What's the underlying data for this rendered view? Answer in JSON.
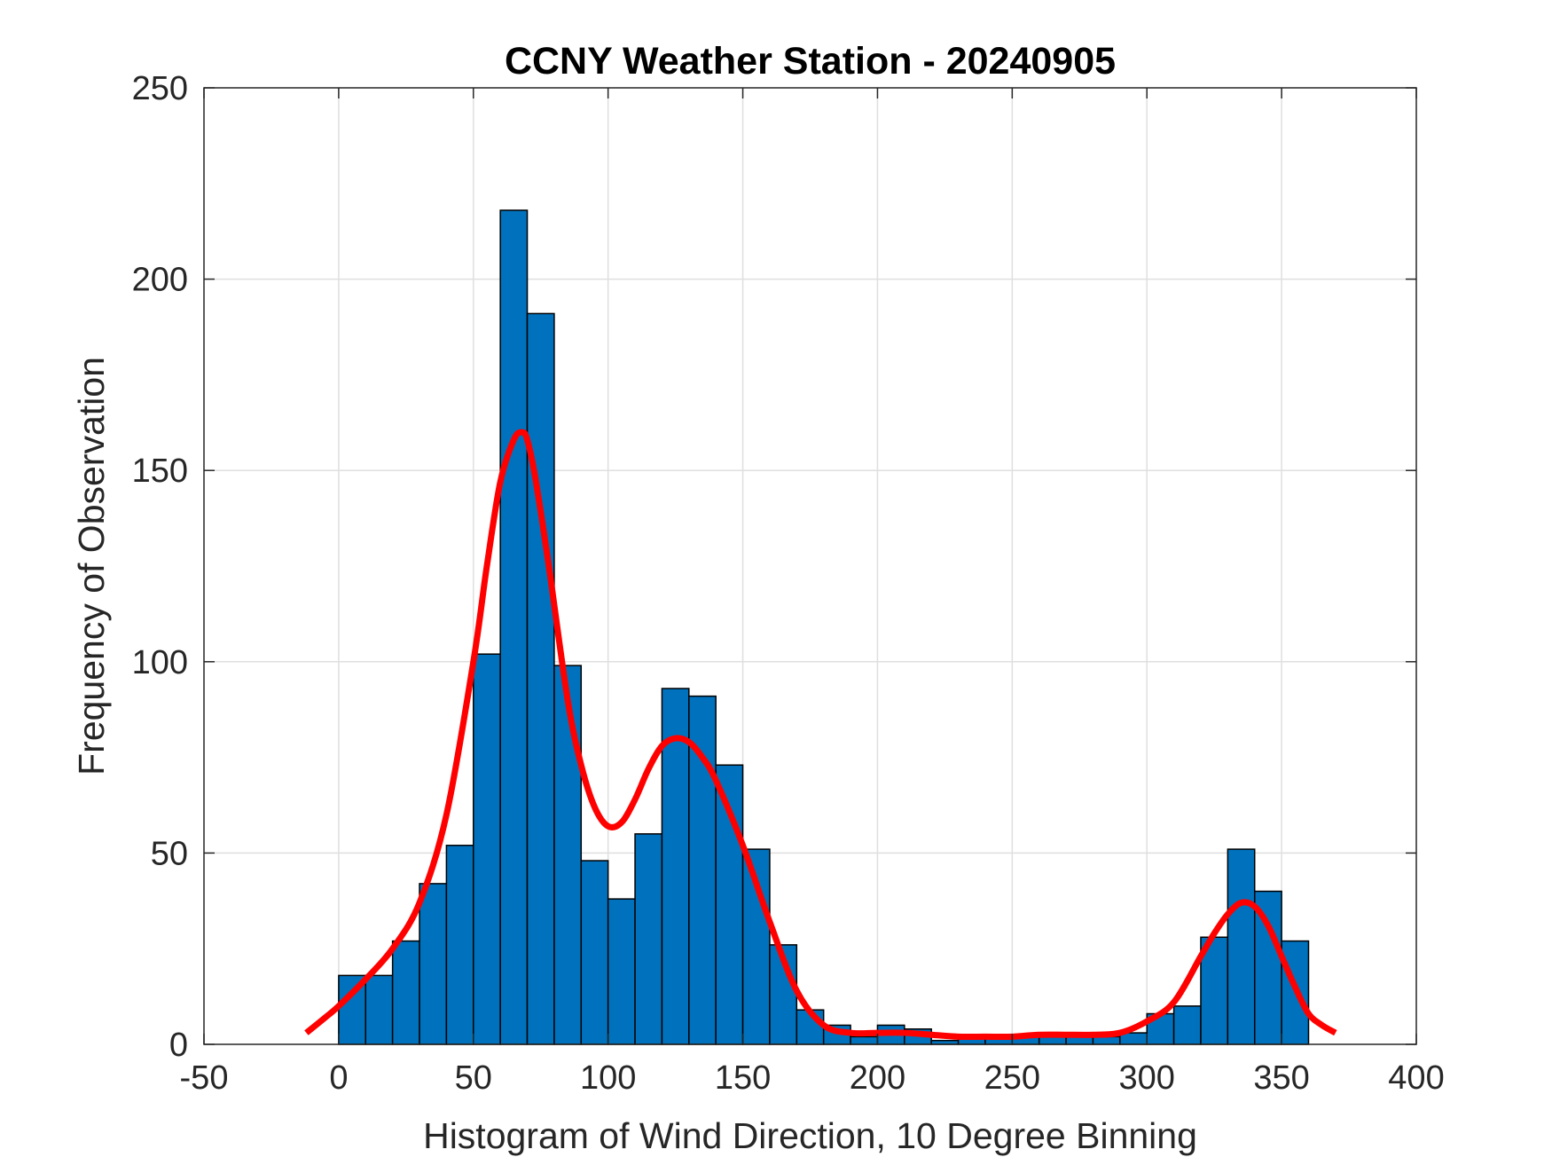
{
  "chart_data": {
    "type": "bar",
    "title": "CCNY Weather Station - 20240905",
    "xlabel": "Histogram of Wind Direction, 10 Degree Binning",
    "ylabel": "Frequency of Observation",
    "xlim": [
      -50,
      400
    ],
    "ylim": [
      0,
      250
    ],
    "xticks": [
      -50,
      0,
      50,
      100,
      150,
      200,
      250,
      300,
      350,
      400
    ],
    "yticks": [
      0,
      50,
      100,
      150,
      200,
      250
    ],
    "grid": true,
    "bin_width": 10,
    "bar_color": "#0072BD",
    "curve_color": "#FF0000",
    "bins": {
      "edges_start": [
        0,
        10,
        20,
        30,
        40,
        50,
        60,
        70,
        80,
        90,
        100,
        110,
        120,
        130,
        140,
        150,
        160,
        170,
        180,
        190,
        200,
        210,
        220,
        230,
        240,
        250,
        260,
        270,
        280,
        290,
        300,
        310,
        320,
        330,
        340,
        350
      ],
      "counts": [
        18,
        18,
        27,
        42,
        52,
        102,
        218,
        191,
        99,
        48,
        38,
        55,
        93,
        91,
        73,
        51,
        26,
        9,
        5,
        2,
        5,
        4,
        1,
        2,
        2,
        2,
        2,
        2,
        2,
        3,
        8,
        10,
        28,
        51,
        40,
        27
      ]
    },
    "series": [
      {
        "type": "line",
        "x": [
          -12,
          -5,
          0,
          10,
          20,
          30,
          40,
          50,
          55,
          60,
          65,
          68,
          70,
          73,
          78,
          85,
          90,
          95,
          100,
          105,
          110,
          115,
          120,
          125,
          130,
          135,
          140,
          150,
          160,
          170,
          180,
          190,
          200,
          210,
          220,
          230,
          240,
          250,
          260,
          270,
          280,
          290,
          300,
          310,
          320,
          325,
          330,
          335,
          340,
          345,
          350,
          355,
          360,
          365,
          370
        ],
        "y": [
          3,
          7,
          10,
          17,
          25,
          37,
          60,
          100,
          125,
          147,
          158,
          160,
          158,
          148,
          125,
          90,
          73,
          62,
          57,
          58,
          64,
          72,
          78,
          80,
          79,
          75,
          69,
          52,
          32,
          14,
          5,
          3,
          3,
          3,
          2.5,
          2,
          2,
          2,
          2.5,
          2.5,
          2.5,
          3,
          6,
          11,
          23,
          29,
          34,
          37,
          36,
          31,
          23,
          15,
          8,
          5,
          3
        ]
      }
    ]
  }
}
